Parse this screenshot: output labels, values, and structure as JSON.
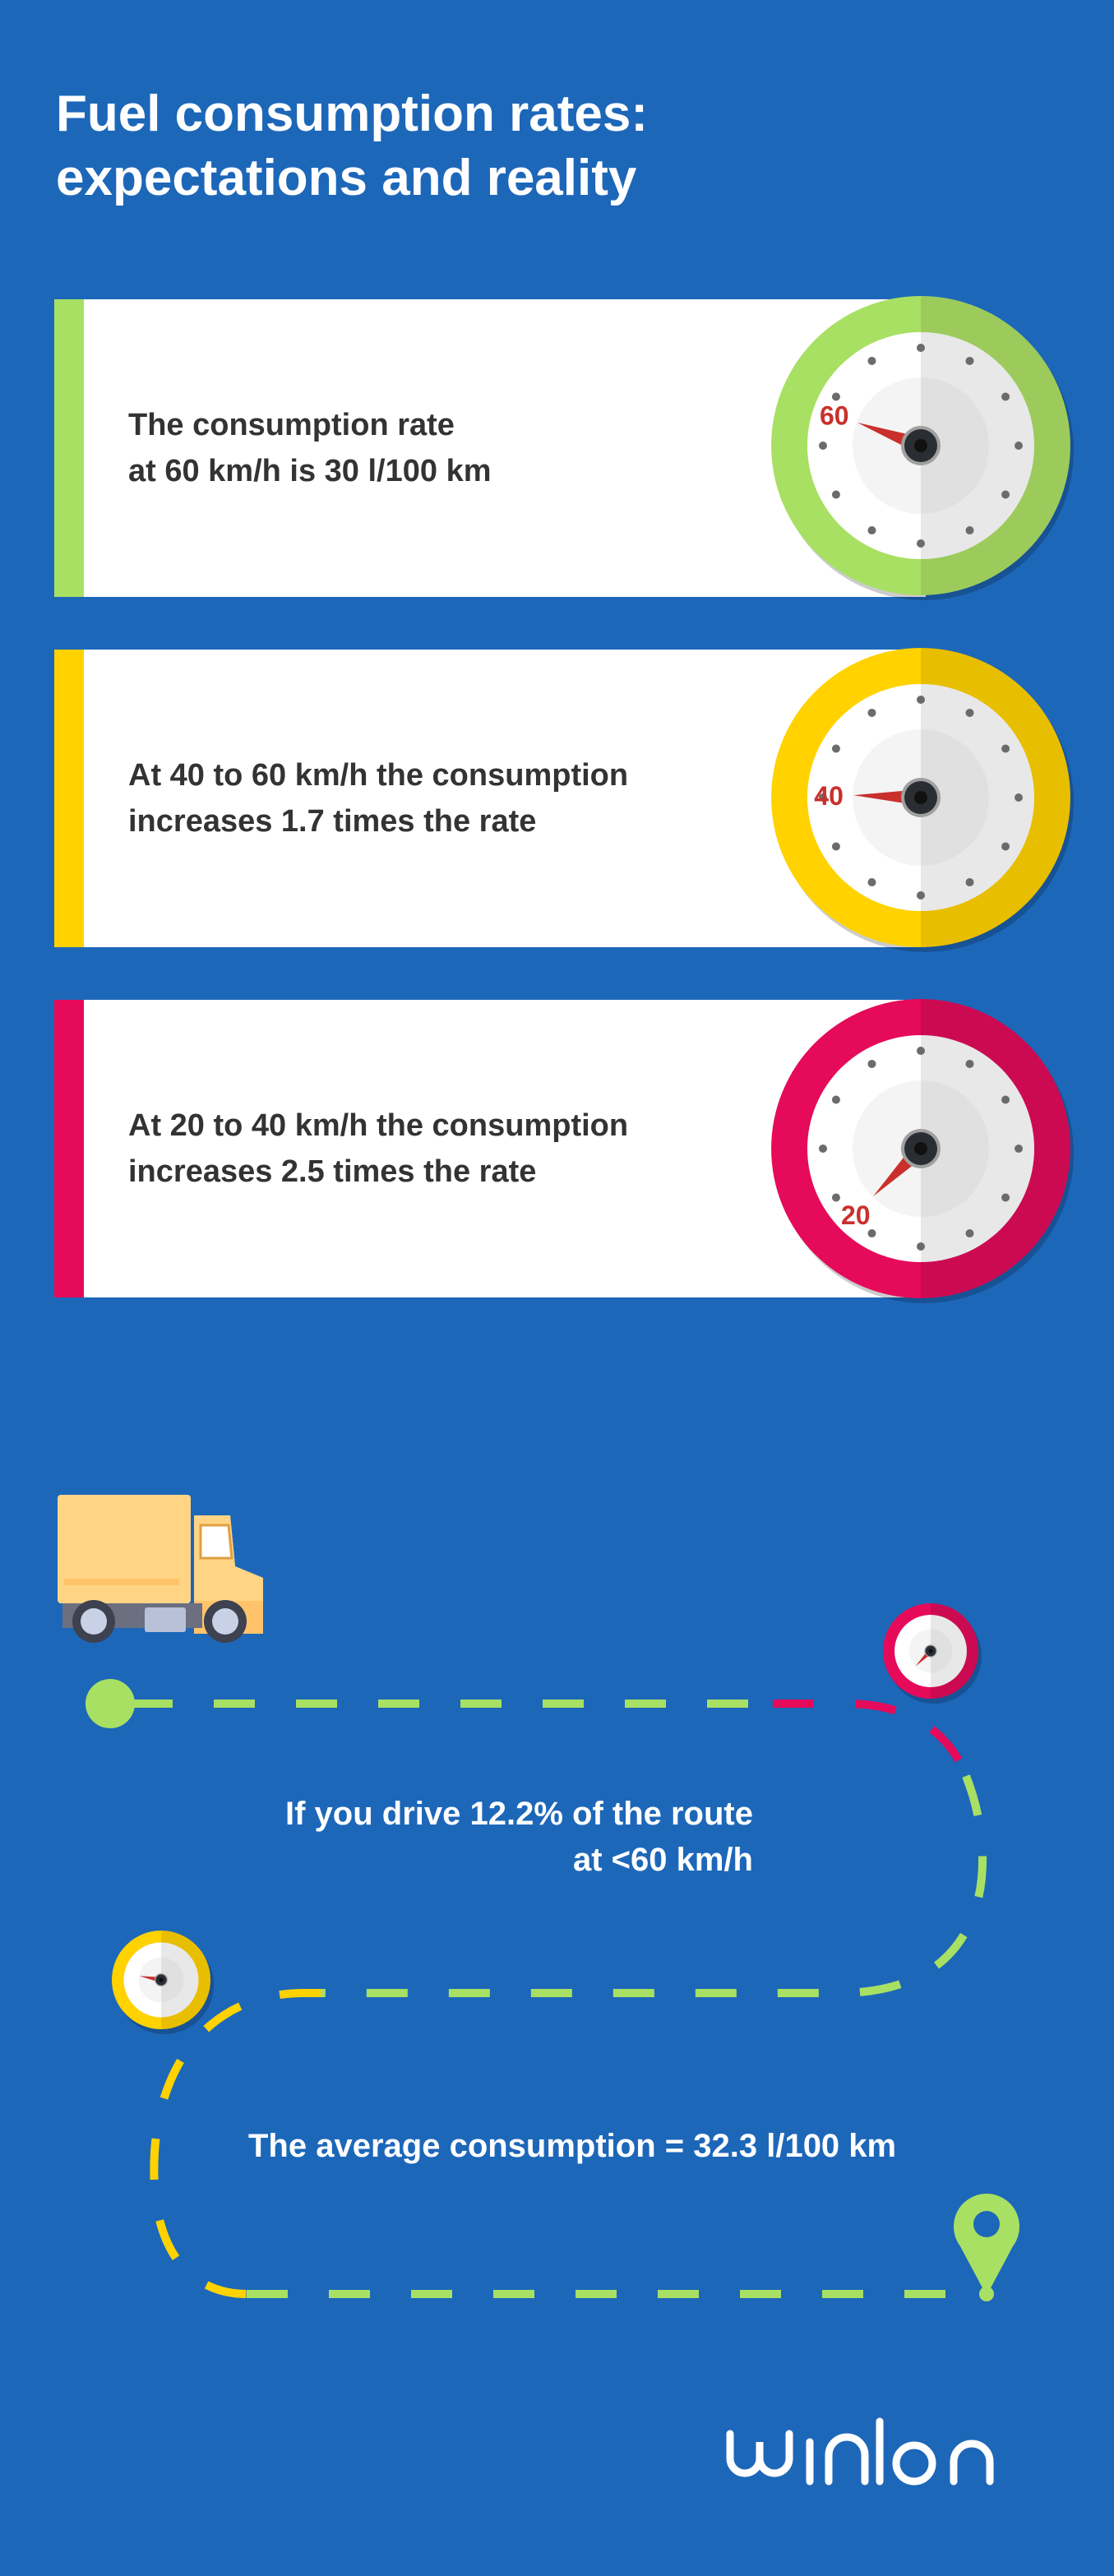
{
  "title": {
    "line1": "Fuel consumption rates:",
    "line2": "expectations and reality"
  },
  "cards": [
    {
      "line1": "The consumption rate",
      "line2": "at 60 km/h is 30 l/100 km",
      "gauge_label": "60",
      "color": "#a8e063",
      "color_dark": "#9ccb5c",
      "bar_color": "#a8e063"
    },
    {
      "line1": "At 40 to 60 km/h the consumption",
      "line2": "increases 1.7 times the rate",
      "gauge_label": "40",
      "color": "#ffd200",
      "color_dark": "#e8be00",
      "bar_color": "#ffd200"
    },
    {
      "line1": "At 20 to 40 km/h the consumption",
      "line2": "increases 2.5 times the rate",
      "gauge_label": "20",
      "color": "#e50a5a",
      "color_dark": "#cc0a52",
      "bar_color": "#e50a5a"
    }
  ],
  "route": {
    "text1_line1": "If you drive 12.2% of the route",
    "text1_line2": "at <60 km/h",
    "text2": "The average consumption = 32.3 l/100 km"
  },
  "logo": {
    "text": "wialon"
  },
  "colors": {
    "background": "#1d67b9",
    "green": "#a8e063",
    "yellow": "#ffd200",
    "red": "#e50a5a",
    "needle": "#c9302c"
  }
}
